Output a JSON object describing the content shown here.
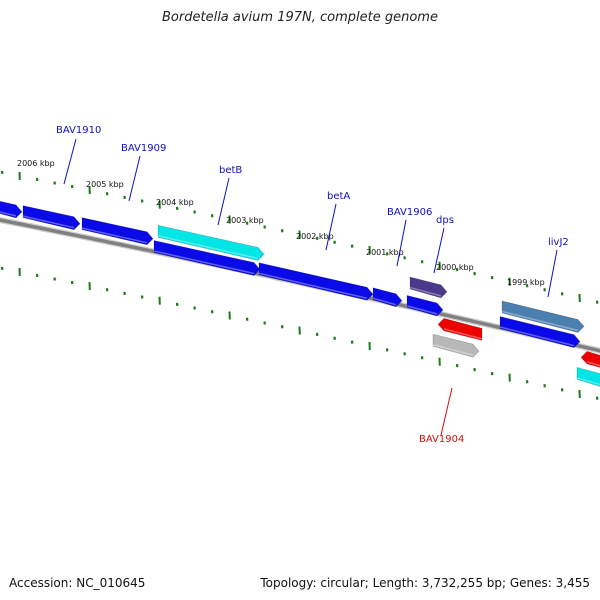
{
  "title": "Bordetella avium 197N, complete genome",
  "footer": {
    "accession": "Accession: NC_010645",
    "summary": "Topology: circular; Length: 3,732,255 bp; Genes: 3,455"
  },
  "colors": {
    "backbone": "#808080",
    "tick": "#1a7a1a",
    "gene_blue": "#0a0ae8",
    "gene_cyan": "#00e5e5",
    "gene_navy": "#4b3a8c",
    "gene_steel": "#4a7fb0",
    "gene_red": "#ee0000",
    "gene_gray": "#b8b8b8",
    "label_blue": "#1010c0",
    "label_red": "#d01010"
  },
  "kbp_ticks": [
    {
      "label": "2006 kbp"
    },
    {
      "label": "2005 kbp"
    },
    {
      "label": "2004 kbp"
    },
    {
      "label": "2003 kbp"
    },
    {
      "label": "2002 kbp"
    },
    {
      "label": "2001 kbp"
    },
    {
      "label": "2000 kbp"
    },
    {
      "label": "1999 kbp"
    }
  ],
  "gene_labels": [
    {
      "name": "BAV1910",
      "color": "blue"
    },
    {
      "name": "BAV1909",
      "color": "blue"
    },
    {
      "name": "betB",
      "color": "blue"
    },
    {
      "name": "betA",
      "color": "blue"
    },
    {
      "name": "BAV1906",
      "color": "blue"
    },
    {
      "name": "dps",
      "color": "blue"
    },
    {
      "name": "livJ2",
      "color": "blue"
    },
    {
      "name": "BAV1904",
      "color": "red"
    }
  ]
}
